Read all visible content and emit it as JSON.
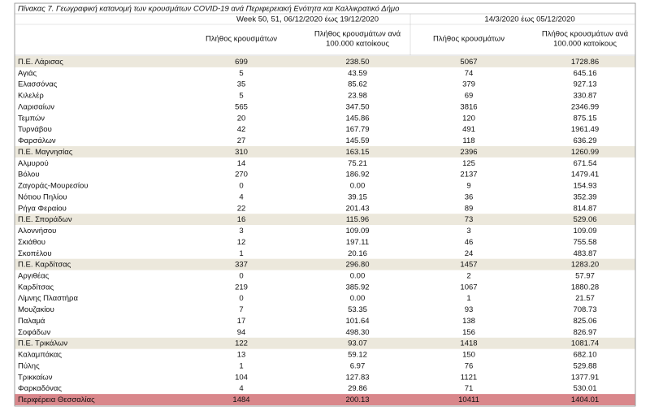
{
  "header": {
    "title": "Πίνακας 7. Γεωγραφική κατανομή των κρουσμάτων COVID-19 ανά Περιφερειακή Ενότητα και Καλλικρατικό Δήμο",
    "periods": [
      "Week 50, 51, 06/12/2020 έως 19/12/2020",
      "14/3/2020 έως 05/12/2020"
    ],
    "columns": [
      [
        "Πλήθος κρουσμάτων"
      ],
      [
        "Πλήθος κρουσμάτων ανά",
        "100.000 κατοίκους"
      ],
      [
        "Πλήθος κρουσμάτων"
      ],
      [
        "Πλήθος κρουσμάτων ανά",
        "100.000 κατοίκους"
      ]
    ]
  },
  "table": {
    "units": [
      {
        "name": "Π.Ε. Λάρισας",
        "values": [
          "699",
          "238.50",
          "5067",
          "1728.86"
        ],
        "municipalities": [
          {
            "name": "Αγιάς",
            "values": [
              "5",
              "43.59",
              "74",
              "645.16"
            ]
          },
          {
            "name": "Ελασσόνας",
            "values": [
              "35",
              "85.62",
              "379",
              "927.13"
            ]
          },
          {
            "name": "Κιλελέρ",
            "values": [
              "5",
              "23.98",
              "69",
              "330.87"
            ]
          },
          {
            "name": "Λαρισαίων",
            "values": [
              "565",
              "347.50",
              "3816",
              "2346.99"
            ]
          },
          {
            "name": "Τεμπών",
            "values": [
              "20",
              "145.86",
              "120",
              "875.15"
            ]
          },
          {
            "name": "Τυρνάβου",
            "values": [
              "42",
              "167.79",
              "491",
              "1961.49"
            ]
          },
          {
            "name": "Φαρσάλων",
            "values": [
              "27",
              "145.59",
              "118",
              "636.29"
            ]
          }
        ]
      },
      {
        "name": "Π.Ε. Μαγνησίας",
        "values": [
          "310",
          "163.15",
          "2396",
          "1260.99"
        ],
        "municipalities": [
          {
            "name": "Αλμυρού",
            "values": [
              "14",
              "75.21",
              "125",
              "671.54"
            ]
          },
          {
            "name": "Βόλου",
            "values": [
              "270",
              "186.92",
              "2137",
              "1479.41"
            ]
          },
          {
            "name": "Ζαγοράς-Μουρεσίου",
            "values": [
              "0",
              "0.00",
              "9",
              "154.93"
            ]
          },
          {
            "name": "Νότιου Πηλίου",
            "values": [
              "4",
              "39.15",
              "36",
              "352.39"
            ]
          },
          {
            "name": "Ρήγα Φεραίου",
            "values": [
              "22",
              "201.43",
              "89",
              "814.87"
            ]
          }
        ]
      },
      {
        "name": "Π.Ε. Σποράδων",
        "values": [
          "16",
          "115.96",
          "73",
          "529.06"
        ],
        "municipalities": [
          {
            "name": "Αλοννήσου",
            "values": [
              "3",
              "109.09",
              "3",
              "109.09"
            ]
          },
          {
            "name": "Σκιάθου",
            "values": [
              "12",
              "197.11",
              "46",
              "755.58"
            ]
          },
          {
            "name": "Σκοπέλου",
            "values": [
              "1",
              "20.16",
              "24",
              "483.87"
            ]
          }
        ]
      },
      {
        "name": "Π.Ε. Καρδίτσας",
        "values": [
          "337",
          "296.80",
          "1457",
          "1283.20"
        ],
        "municipalities": [
          {
            "name": "Αργιθέας",
            "values": [
              "0",
              "0.00",
              "2",
              "57.97"
            ]
          },
          {
            "name": "Καρδίτσας",
            "values": [
              "219",
              "385.92",
              "1067",
              "1880.28"
            ]
          },
          {
            "name": "Λίμνης Πλαστήρα",
            "values": [
              "0",
              "0.00",
              "1",
              "21.57"
            ]
          },
          {
            "name": "Μουζακίου",
            "values": [
              "7",
              "53.35",
              "93",
              "708.73"
            ]
          },
          {
            "name": "Παλαμά",
            "values": [
              "17",
              "101.64",
              "138",
              "825.06"
            ]
          },
          {
            "name": "Σοφάδων",
            "values": [
              "94",
              "498.30",
              "156",
              "826.97"
            ]
          }
        ]
      },
      {
        "name": "Π.Ε. Τρικάλων",
        "values": [
          "122",
          "93.07",
          "1418",
          "1081.74"
        ],
        "municipalities": [
          {
            "name": "Καλαμπάκας",
            "values": [
              "13",
              "59.12",
              "150",
              "682.10"
            ]
          },
          {
            "name": "Πύλης",
            "values": [
              "1",
              "6.97",
              "76",
              "529.88"
            ]
          },
          {
            "name": "Τρικκαίων",
            "values": [
              "104",
              "127.83",
              "1121",
              "1377.91"
            ]
          },
          {
            "name": "Φαρκαδόνας",
            "values": [
              "4",
              "29.86",
              "71",
              "530.01"
            ]
          }
        ]
      }
    ],
    "total": {
      "name": "Περιφέρεια Θεσσαλίας",
      "values": [
        "1484",
        "200.13",
        "10411",
        "1404.01"
      ]
    }
  }
}
